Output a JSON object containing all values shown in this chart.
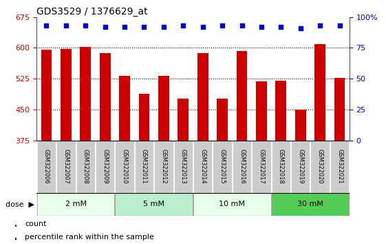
{
  "title": "GDS3529 / 1376629_at",
  "bar_values": [
    595,
    598,
    603,
    588,
    532,
    488,
    532,
    477,
    588,
    477,
    592,
    518,
    520,
    450,
    610,
    527
  ],
  "percentile_values": [
    93,
    93,
    93,
    92,
    92,
    92,
    92,
    93,
    92,
    93,
    93,
    92,
    92,
    91,
    93,
    93
  ],
  "samples": [
    "GSM322006",
    "GSM322007",
    "GSM322008",
    "GSM322009",
    "GSM322010",
    "GSM322011",
    "GSM322012",
    "GSM322013",
    "GSM322014",
    "GSM322015",
    "GSM322016",
    "GSM322017",
    "GSM322018",
    "GSM322019",
    "GSM322020",
    "GSM322021"
  ],
  "bar_color": "#cc0000",
  "dot_color": "#0000cc",
  "ylim_left": [
    375,
    675
  ],
  "ylim_right": [
    0,
    100
  ],
  "yticks_left": [
    375,
    450,
    525,
    600,
    675
  ],
  "yticks_right": [
    0,
    25,
    50,
    75,
    100
  ],
  "ytick_labels_right": [
    "0",
    "25",
    "50",
    "75",
    "100%"
  ],
  "dose_groups": [
    {
      "label": "2 mM",
      "start": 0,
      "end": 3,
      "color": "#e8ffe8"
    },
    {
      "label": "5 mM",
      "start": 4,
      "end": 7,
      "color": "#bbeecc"
    },
    {
      "label": "10 mM",
      "start": 8,
      "end": 11,
      "color": "#e8ffe8"
    },
    {
      "label": "30 mM",
      "start": 12,
      "end": 15,
      "color": "#55cc55"
    }
  ],
  "dose_label": "dose",
  "legend_items": [
    {
      "label": "count",
      "color": "#cc0000"
    },
    {
      "label": "percentile rank within the sample",
      "color": "#0000cc"
    }
  ],
  "grid_yticks": [
    450,
    525,
    600
  ],
  "bar_width": 0.55,
  "title_fontsize": 10,
  "tick_label_color_left": "#cc0000",
  "tick_label_color_right": "#0000cc",
  "sample_box_color": "#cccccc",
  "bar_bottom": 375
}
